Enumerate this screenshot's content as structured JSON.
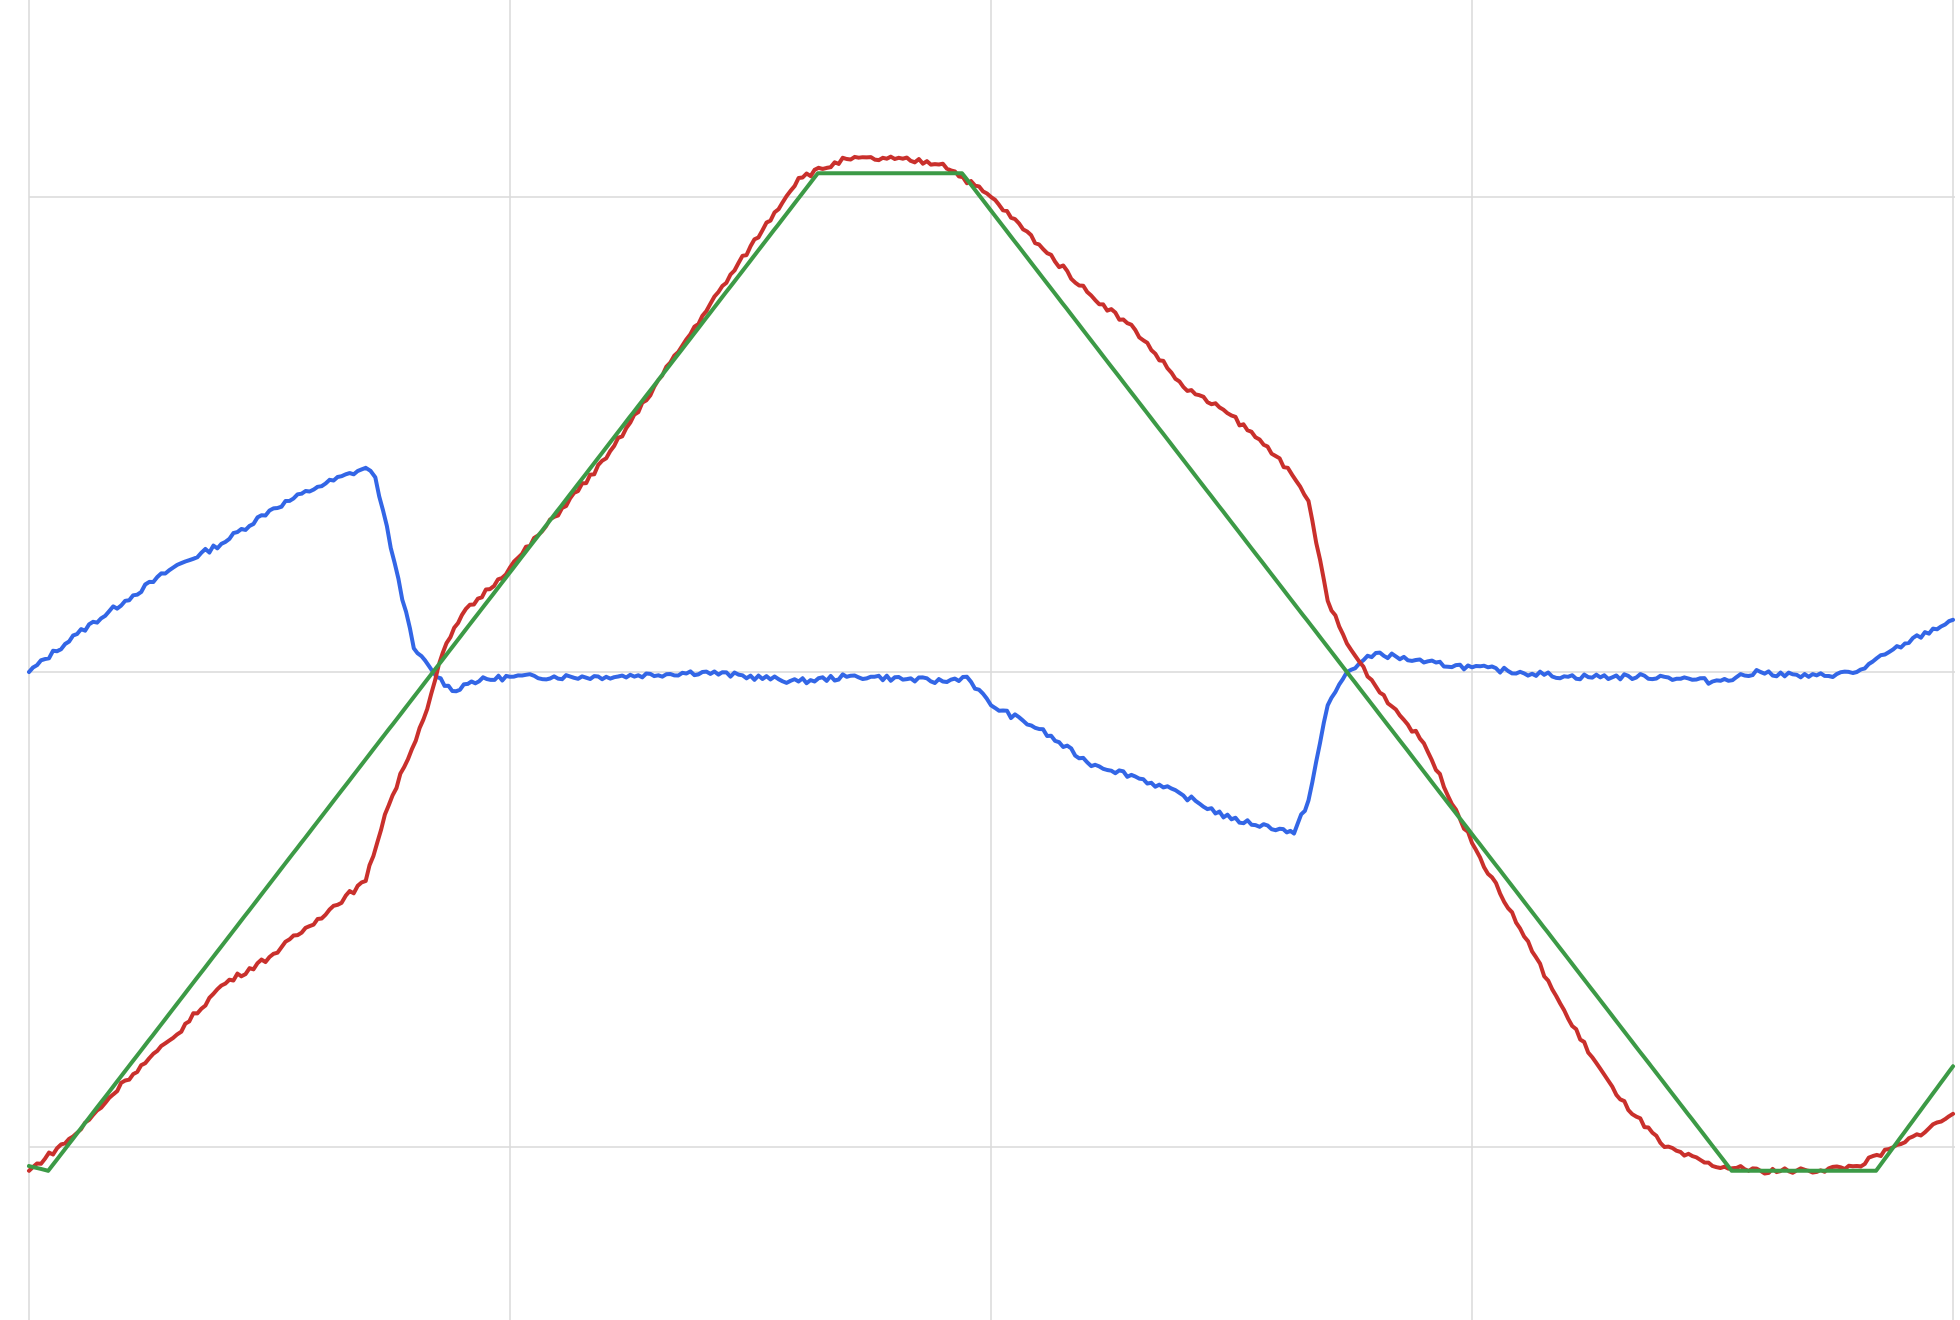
{
  "chart_data": {
    "type": "line",
    "title": "",
    "xlabel": "",
    "ylabel": "",
    "xlim": [
      0,
      4
    ],
    "ylim": [
      -1.35,
      1.35
    ],
    "grid": true,
    "x_gridlines": [
      0,
      1,
      2,
      3,
      4
    ],
    "y_gridlines": [
      -1,
      0,
      1
    ],
    "series": [
      {
        "color": "#3366e6",
        "points": [
          [
            0.0,
            0.0
          ],
          [
            0.1,
            0.08
          ],
          [
            0.2,
            0.15
          ],
          [
            0.3,
            0.22
          ],
          [
            0.4,
            0.27
          ],
          [
            0.5,
            0.34
          ],
          [
            0.6,
            0.39
          ],
          [
            0.7,
            0.43
          ],
          [
            0.72,
            0.41
          ],
          [
            0.76,
            0.23
          ],
          [
            0.8,
            0.05
          ],
          [
            0.84,
            -0.0
          ],
          [
            0.88,
            -0.04
          ],
          [
            0.92,
            -0.02
          ],
          [
            1.0,
            -0.01
          ],
          [
            1.2,
            -0.01
          ],
          [
            1.4,
            0.0
          ],
          [
            1.6,
            -0.02
          ],
          [
            1.7,
            -0.01
          ],
          [
            1.75,
            -0.01
          ],
          [
            1.9,
            -0.02
          ],
          [
            1.95,
            -0.01
          ],
          [
            2.0,
            -0.07
          ],
          [
            2.1,
            -0.12
          ],
          [
            2.2,
            -0.19
          ],
          [
            2.3,
            -0.22
          ],
          [
            2.4,
            -0.26
          ],
          [
            2.5,
            -0.31
          ],
          [
            2.6,
            -0.33
          ],
          [
            2.63,
            -0.34
          ],
          [
            2.66,
            -0.27
          ],
          [
            2.7,
            -0.07
          ],
          [
            2.74,
            0.0
          ],
          [
            2.8,
            0.04
          ],
          [
            2.9,
            0.02
          ],
          [
            3.0,
            0.01
          ],
          [
            3.2,
            -0.01
          ],
          [
            3.4,
            -0.01
          ],
          [
            3.5,
            -0.02
          ],
          [
            3.6,
            0.0
          ],
          [
            3.7,
            -0.01
          ],
          [
            3.8,
            -0.0
          ],
          [
            3.9,
            0.06
          ],
          [
            4.0,
            0.11
          ]
        ]
      },
      {
        "color": "#c9302c",
        "points": [
          [
            0.0,
            -1.05
          ],
          [
            0.1,
            -0.97
          ],
          [
            0.2,
            -0.86
          ],
          [
            0.3,
            -0.77
          ],
          [
            0.4,
            -0.66
          ],
          [
            0.5,
            -0.6
          ],
          [
            0.6,
            -0.52
          ],
          [
            0.7,
            -0.44
          ],
          [
            0.74,
            -0.3
          ],
          [
            0.78,
            -0.2
          ],
          [
            0.82,
            -0.1
          ],
          [
            0.86,
            0.04
          ],
          [
            0.9,
            0.12
          ],
          [
            1.0,
            0.22
          ],
          [
            1.2,
            0.45
          ],
          [
            1.4,
            0.75
          ],
          [
            1.6,
            1.04
          ],
          [
            1.7,
            1.08
          ],
          [
            1.8,
            1.08
          ],
          [
            1.9,
            1.07
          ],
          [
            2.0,
            1.0
          ],
          [
            2.1,
            0.9
          ],
          [
            2.2,
            0.8
          ],
          [
            2.3,
            0.72
          ],
          [
            2.4,
            0.6
          ],
          [
            2.5,
            0.54
          ],
          [
            2.6,
            0.45
          ],
          [
            2.66,
            0.36
          ],
          [
            2.7,
            0.15
          ],
          [
            2.74,
            0.06
          ],
          [
            2.8,
            -0.03
          ],
          [
            2.9,
            -0.15
          ],
          [
            3.0,
            -0.36
          ],
          [
            3.1,
            -0.54
          ],
          [
            3.2,
            -0.73
          ],
          [
            3.3,
            -0.89
          ],
          [
            3.4,
            -1.0
          ],
          [
            3.5,
            -1.04
          ],
          [
            3.6,
            -1.05
          ],
          [
            3.7,
            -1.05
          ],
          [
            3.8,
            -1.04
          ],
          [
            3.9,
            -0.99
          ],
          [
            4.0,
            -0.93
          ]
        ]
      },
      {
        "color": "#3c9a46",
        "points": [
          [
            0.0,
            -1.04
          ],
          [
            0.04,
            -1.05
          ],
          [
            0.84,
            0.0
          ],
          [
            1.64,
            1.05
          ],
          [
            1.94,
            1.05
          ],
          [
            2.74,
            0.0
          ],
          [
            3.54,
            -1.05
          ],
          [
            3.84,
            -1.05
          ],
          [
            4.0,
            -0.83
          ]
        ]
      }
    ]
  }
}
